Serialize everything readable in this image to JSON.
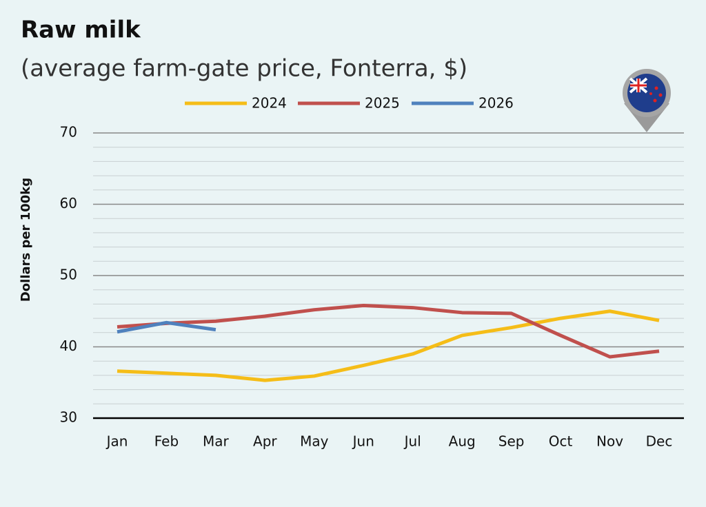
{
  "chart_data": {
    "type": "line",
    "title": "Raw milk",
    "subtitle": "(average farm-gate price, Fonterra, $)",
    "y_label": "Dollars per 100kg",
    "categories": [
      "Jan",
      "Feb",
      "Mar",
      "Apr",
      "May",
      "Jun",
      "Jul",
      "Aug",
      "Sep",
      "Oct",
      "Nov",
      "Dec"
    ],
    "series": [
      {
        "name": "2024",
        "color": "#f5bd18",
        "values": [
          36.6,
          36.3,
          36.0,
          35.3,
          35.9,
          37.4,
          39.0,
          41.6,
          42.7,
          44.0,
          45.0,
          43.7
        ]
      },
      {
        "name": "2025",
        "color": "#c0504d",
        "values": [
          42.8,
          43.3,
          43.6,
          44.3,
          45.2,
          45.8,
          45.5,
          44.8,
          44.7,
          41.6,
          38.6,
          39.4
        ]
      },
      {
        "name": "2026",
        "color": "#4f81bd",
        "values": [
          42.1,
          43.4,
          42.4,
          null,
          null,
          null,
          null,
          null,
          null,
          null,
          null,
          null
        ]
      }
    ],
    "ylim": [
      30,
      70
    ],
    "yticks": [
      30,
      40,
      50,
      60,
      70
    ],
    "grid": true
  }
}
